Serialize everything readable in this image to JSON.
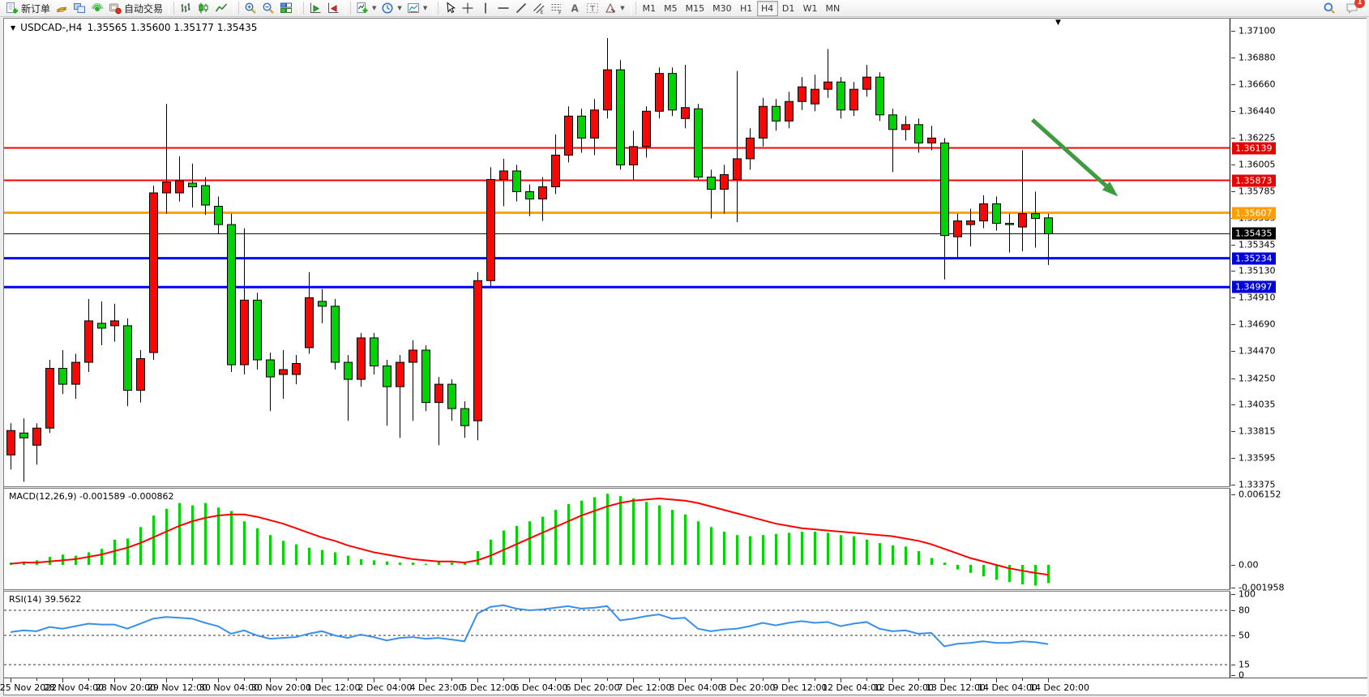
{
  "toolbar": {
    "groups": [
      {
        "items": [
          {
            "icon": "new-order",
            "label": "新订单"
          },
          {
            "icon": "market-watch"
          },
          {
            "icon": "navigator"
          },
          {
            "icon": "signals"
          },
          {
            "icon": "auto-trading",
            "label": "自动交易"
          }
        ]
      },
      {
        "items": [
          {
            "icon": "bar-chart"
          },
          {
            "icon": "candle-chart"
          },
          {
            "icon": "line-chart"
          }
        ]
      },
      {
        "items": [
          {
            "icon": "zoom-in"
          },
          {
            "icon": "zoom-out"
          },
          {
            "icon": "tile-windows"
          }
        ]
      },
      {
        "items": [
          {
            "icon": "step-forward"
          },
          {
            "icon": "step-back"
          }
        ]
      },
      {
        "items": [
          {
            "icon": "indicators",
            "caret": true
          },
          {
            "icon": "periods",
            "caret": true
          },
          {
            "icon": "templates",
            "caret": true
          }
        ]
      },
      {
        "items": [
          {
            "icon": "cursor"
          },
          {
            "icon": "crosshair"
          },
          {
            "icon": "vertical-line"
          },
          {
            "icon": "horizontal-line"
          },
          {
            "icon": "trendline"
          },
          {
            "icon": "equidistant-channel"
          },
          {
            "icon": "fibonacci"
          },
          {
            "icon": "text"
          },
          {
            "icon": "text-label"
          },
          {
            "icon": "arrows-tool",
            "caret": true
          }
        ]
      }
    ],
    "timeframes": [
      {
        "label": "M1"
      },
      {
        "label": "M5"
      },
      {
        "label": "M15"
      },
      {
        "label": "M30"
      },
      {
        "label": "H1"
      },
      {
        "label": "H4",
        "active": true
      },
      {
        "label": "D1"
      },
      {
        "label": "W1"
      },
      {
        "label": "MN"
      }
    ],
    "notification_count": "1"
  },
  "chart": {
    "title": "USDCAD-,H4",
    "ohlc": "1.35565 1.35600 1.35177 1.35435",
    "shift_marker": "▼",
    "symbol_dropdown": "▼"
  },
  "chart_data": {
    "type": "candlestick",
    "symbol": "USDCAD-",
    "period": "H4",
    "last_bar": {
      "open": 1.35565,
      "high": 1.356,
      "low": 1.35177,
      "close": 1.35435
    },
    "ylim": [
      1.33375,
      1.371
    ],
    "colors": {
      "bull": "#fb0505",
      "bear": "#00d400",
      "wick": "#000000",
      "macd_hist": "#00d400",
      "macd_signal": "#ff0000",
      "rsi": "#3a8fe8",
      "arrow": "#3f9b3f",
      "axis_text": "#000000"
    },
    "price_axis_ticks": [
      "1.37100",
      "1.36880",
      "1.36660",
      "1.36440",
      "1.36225",
      "1.36005",
      "1.35785",
      "1.35565",
      "1.35345",
      "1.35130",
      "1.34910",
      "1.34690",
      "1.34470",
      "1.34250",
      "1.34035",
      "1.33815",
      "1.33595",
      "1.33375"
    ],
    "time_axis_labels": [
      "25 Nov 2022",
      "28 Nov 04:00",
      "28 Nov 20:00",
      "29 Nov 12:00",
      "30 Nov 04:00",
      "30 Nov 20:00",
      "1 Dec 12:00",
      "2 Dec 04:00",
      "4 Dec 23:00",
      "5 Dec 12:00",
      "6 Dec 04:00",
      "6 Dec 20:00",
      "7 Dec 12:00",
      "8 Dec 04:00",
      "8 Dec 20:00",
      "9 Dec 12:00",
      "12 Dec 04:00",
      "12 Dec 20:00",
      "13 Dec 12:00",
      "14 Dec 04:00",
      "14 Dec 20:00"
    ],
    "horizontal_lines": [
      {
        "price": 1.36139,
        "color": "#ff0000",
        "width": 2,
        "badge_bg": "#e60000",
        "label": "1.36139"
      },
      {
        "price": 1.35873,
        "color": "#ff0000",
        "width": 2,
        "badge_bg": "#e60000",
        "label": "1.35873"
      },
      {
        "price": 1.35607,
        "color": "#ffa500",
        "width": 3,
        "badge_bg": "#ff9d00",
        "label": "1.35607"
      },
      {
        "price": 1.35435,
        "color": "#000000",
        "width": 1,
        "badge_bg": "#000000",
        "label": "1.35435"
      },
      {
        "price": 1.35234,
        "color": "#0000ff",
        "width": 3,
        "badge_bg": "#0000d9",
        "label": "1.35234"
      },
      {
        "price": 1.34997,
        "color": "#0000ff",
        "width": 3,
        "badge_bg": "#0000d9",
        "label": "1.34997"
      }
    ],
    "annotation_arrow": {
      "from_bar": 78.8,
      "from_price": 1.3637,
      "to_bar": 85.4,
      "to_price": 1.3574
    },
    "candles": [
      [
        1.3362,
        1.3388,
        1.335,
        1.3382
      ],
      [
        1.338,
        1.3392,
        1.334,
        1.3376
      ],
      [
        1.337,
        1.3388,
        1.3354,
        1.3384
      ],
      [
        1.3384,
        1.344,
        1.338,
        1.3433
      ],
      [
        1.3433,
        1.3448,
        1.3412,
        1.342
      ],
      [
        1.342,
        1.3445,
        1.3408,
        1.3438
      ],
      [
        1.3438,
        1.349,
        1.343,
        1.3472
      ],
      [
        1.347,
        1.3488,
        1.3452,
        1.3466
      ],
      [
        1.3468,
        1.3486,
        1.3455,
        1.3472
      ],
      [
        1.3468,
        1.3474,
        1.3402,
        1.3415
      ],
      [
        1.3415,
        1.3448,
        1.3405,
        1.3441
      ],
      [
        1.3446,
        1.3583,
        1.344,
        1.3577
      ],
      [
        1.3577,
        1.365,
        1.356,
        1.3586
      ],
      [
        1.3577,
        1.3607,
        1.357,
        1.3587
      ],
      [
        1.3585,
        1.3601,
        1.3565,
        1.3582
      ],
      [
        1.3583,
        1.359,
        1.3559,
        1.3567
      ],
      [
        1.3566,
        1.3574,
        1.3543,
        1.3551
      ],
      [
        1.3551,
        1.356,
        1.343,
        1.3436
      ],
      [
        1.3436,
        1.3548,
        1.3428,
        1.3489
      ],
      [
        1.3489,
        1.3495,
        1.3432,
        1.344
      ],
      [
        1.344,
        1.3446,
        1.3398,
        1.3426
      ],
      [
        1.3428,
        1.3448,
        1.3408,
        1.3432
      ],
      [
        1.3428,
        1.3444,
        1.342,
        1.3437
      ],
      [
        1.345,
        1.3512,
        1.3445,
        1.3491
      ],
      [
        1.3488,
        1.3498,
        1.347,
        1.3484
      ],
      [
        1.3484,
        1.349,
        1.3432,
        1.3438
      ],
      [
        1.3438,
        1.3444,
        1.339,
        1.3424
      ],
      [
        1.3424,
        1.3462,
        1.3418,
        1.3458
      ],
      [
        1.3458,
        1.3462,
        1.3428,
        1.3435
      ],
      [
        1.3435,
        1.344,
        1.3386,
        1.3418
      ],
      [
        1.3418,
        1.3444,
        1.3376,
        1.3438
      ],
      [
        1.3438,
        1.3456,
        1.339,
        1.3448
      ],
      [
        1.3448,
        1.3452,
        1.3398,
        1.3405
      ],
      [
        1.3405,
        1.3426,
        1.337,
        1.342
      ],
      [
        1.342,
        1.3424,
        1.339,
        1.34
      ],
      [
        1.34,
        1.3406,
        1.3376,
        1.3386
      ],
      [
        1.339,
        1.3512,
        1.3374,
        1.3505
      ],
      [
        1.3505,
        1.3598,
        1.35,
        1.3588
      ],
      [
        1.3588,
        1.3605,
        1.3566,
        1.3595
      ],
      [
        1.3595,
        1.36,
        1.357,
        1.3578
      ],
      [
        1.3578,
        1.3584,
        1.3558,
        1.3572
      ],
      [
        1.3572,
        1.359,
        1.3554,
        1.3582
      ],
      [
        1.3582,
        1.3625,
        1.3576,
        1.3608
      ],
      [
        1.3608,
        1.3648,
        1.3602,
        1.364
      ],
      [
        1.364,
        1.3646,
        1.361,
        1.3622
      ],
      [
        1.3622,
        1.3654,
        1.3608,
        1.3645
      ],
      [
        1.3645,
        1.3704,
        1.3638,
        1.3678
      ],
      [
        1.3678,
        1.3686,
        1.3596,
        1.36
      ],
      [
        1.36,
        1.3628,
        1.3588,
        1.3615
      ],
      [
        1.3615,
        1.3648,
        1.3606,
        1.3644
      ],
      [
        1.3644,
        1.368,
        1.3638,
        1.3675
      ],
      [
        1.3675,
        1.368,
        1.364,
        1.3645
      ],
      [
        1.3638,
        1.3682,
        1.363,
        1.3647
      ],
      [
        1.3646,
        1.365,
        1.3588,
        1.359
      ],
      [
        1.359,
        1.3596,
        1.3556,
        1.358
      ],
      [
        1.358,
        1.36,
        1.356,
        1.3592
      ],
      [
        1.3588,
        1.3677,
        1.3553,
        1.3605
      ],
      [
        1.3605,
        1.363,
        1.3596,
        1.3622
      ],
      [
        1.3622,
        1.3655,
        1.3615,
        1.3648
      ],
      [
        1.3648,
        1.3654,
        1.3628,
        1.3636
      ],
      [
        1.3636,
        1.366,
        1.363,
        1.3652
      ],
      [
        1.3652,
        1.3672,
        1.3645,
        1.3664
      ],
      [
        1.365,
        1.3674,
        1.3644,
        1.3662
      ],
      [
        1.3662,
        1.3695,
        1.3655,
        1.3668
      ],
      [
        1.3668,
        1.3672,
        1.3638,
        1.3645
      ],
      [
        1.3645,
        1.3668,
        1.364,
        1.3662
      ],
      [
        1.3662,
        1.3682,
        1.3656,
        1.3672
      ],
      [
        1.3672,
        1.3676,
        1.3636,
        1.3641
      ],
      [
        1.3641,
        1.3646,
        1.3594,
        1.3629
      ],
      [
        1.3629,
        1.364,
        1.362,
        1.3633
      ],
      [
        1.3633,
        1.3638,
        1.361,
        1.3618
      ],
      [
        1.3618,
        1.3632,
        1.3612,
        1.3622
      ],
      [
        1.3618,
        1.3622,
        1.3506,
        1.3542
      ],
      [
        1.3541,
        1.356,
        1.3524,
        1.3554
      ],
      [
        1.3551,
        1.3564,
        1.3533,
        1.3554
      ],
      [
        1.3554,
        1.3575,
        1.3548,
        1.3568
      ],
      [
        1.3568,
        1.3574,
        1.3546,
        1.3552
      ],
      [
        1.3552,
        1.356,
        1.3528,
        1.3551
      ],
      [
        1.3549,
        1.3612,
        1.3529,
        1.356
      ],
      [
        1.356,
        1.3578,
        1.3532,
        1.3556
      ],
      [
        1.35565,
        1.356,
        1.35177,
        1.35435
      ]
    ],
    "macd": {
      "label": "MACD(12,26,9) -0.001589 -0.000862",
      "params": "12,26,9",
      "value": -0.001589,
      "signal_value": -0.000862,
      "axis_labels": [
        "0.006152",
        "0.00",
        "-0.001958"
      ],
      "histogram": [
        0.0002,
        0.0003,
        0.0004,
        0.0007,
        0.0009,
        0.0008,
        0.0011,
        0.0014,
        0.0022,
        0.0023,
        0.0033,
        0.0043,
        0.0049,
        0.0054,
        0.0052,
        0.0054,
        0.005,
        0.0047,
        0.0038,
        0.0032,
        0.0026,
        0.0021,
        0.0018,
        0.0015,
        0.0013,
        0.0011,
        0.0008,
        0.0005,
        0.0004,
        0.0003,
        0.0002,
        0.0002,
        0.0001,
        0.0003,
        0.0002,
        0.0002,
        0.0012,
        0.0022,
        0.003,
        0.0034,
        0.0038,
        0.0042,
        0.0048,
        0.0053,
        0.0056,
        0.0059,
        0.0062,
        0.006,
        0.0058,
        0.0055,
        0.0052,
        0.0048,
        0.0044,
        0.0038,
        0.0033,
        0.0029,
        0.0026,
        0.0025,
        0.0026,
        0.0027,
        0.0028,
        0.0029,
        0.0029,
        0.0028,
        0.0026,
        0.0025,
        0.0022,
        0.0019,
        0.0017,
        0.0016,
        0.0012,
        0.0006,
        0.0002,
        -0.0004,
        -0.0007,
        -0.001,
        -0.0013,
        -0.0015,
        -0.0017,
        -0.0018,
        -0.001589
      ],
      "signal": [
        0.0001,
        0.0002,
        0.0002,
        0.0003,
        0.0004,
        0.0005,
        0.0007,
        0.0009,
        0.0012,
        0.0015,
        0.0019,
        0.0024,
        0.0029,
        0.0034,
        0.0038,
        0.0041,
        0.0043,
        0.0044,
        0.0044,
        0.0042,
        0.0039,
        0.0036,
        0.0032,
        0.0028,
        0.0024,
        0.0021,
        0.0017,
        0.0014,
        0.0011,
        0.0009,
        0.0007,
        0.0005,
        0.0004,
        0.0003,
        0.0003,
        0.0002,
        0.0004,
        0.0008,
        0.0013,
        0.0018,
        0.0023,
        0.0028,
        0.0033,
        0.0038,
        0.0043,
        0.0047,
        0.0051,
        0.0054,
        0.0056,
        0.0057,
        0.0058,
        0.0057,
        0.0056,
        0.0054,
        0.0051,
        0.0048,
        0.0045,
        0.0042,
        0.0039,
        0.0036,
        0.0034,
        0.0032,
        0.0031,
        0.003,
        0.0029,
        0.0028,
        0.0027,
        0.0026,
        0.0025,
        0.0023,
        0.0021,
        0.0018,
        0.0014,
        0.001,
        0.0006,
        0.0003,
        0.0,
        -0.0003,
        -0.0005,
        -0.0007,
        -0.000862
      ]
    },
    "rsi": {
      "label": "RSI(14) 39.5622",
      "period": 14,
      "value": 39.5622,
      "level_labels": [
        "100",
        "80",
        "50",
        "15",
        "0"
      ],
      "dashed_levels": [
        80,
        50,
        15
      ],
      "values": [
        54,
        56,
        55,
        60,
        58,
        61,
        64,
        63,
        63,
        58,
        64,
        70,
        72,
        71,
        70,
        65,
        61,
        52,
        56,
        50,
        46,
        47,
        48,
        52,
        55,
        50,
        47,
        51,
        48,
        44,
        47,
        48,
        46,
        47,
        45,
        43,
        76,
        84,
        86,
        82,
        80,
        81,
        83,
        85,
        82,
        83,
        85,
        68,
        70,
        73,
        75,
        70,
        71,
        58,
        55,
        57,
        58,
        61,
        65,
        62,
        65,
        67,
        65,
        66,
        61,
        64,
        66,
        58,
        55,
        56,
        52,
        53,
        37,
        40,
        41,
        43,
        41,
        41,
        43,
        42,
        39.5622
      ]
    }
  }
}
